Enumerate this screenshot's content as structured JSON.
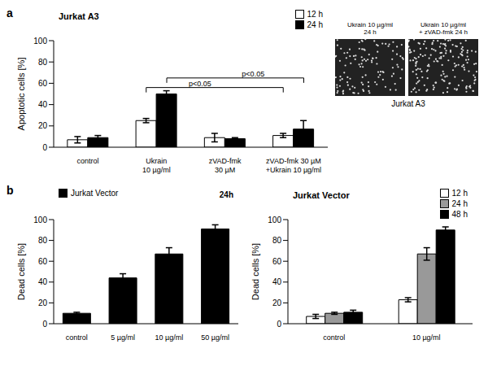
{
  "panel_labels": [
    "a",
    "b"
  ],
  "chart_data": [
    {
      "type": "bar",
      "title": "Jurkat A3",
      "ylabel": "Apoptotic cells [%]",
      "categories": [
        "control",
        "Ukrain\n10 µg/ml",
        "zVAD-fmk\n30 µM",
        "zVAD-fmk 30 µM\n+Ukrain 10 µg/ml"
      ],
      "series": [
        {
          "name": "12 h",
          "color": "#ffffff",
          "values": [
            7,
            25,
            9,
            11
          ],
          "errors": [
            3,
            2,
            4,
            2
          ]
        },
        {
          "name": "24 h",
          "color": "#000000",
          "values": [
            9,
            50,
            8,
            17
          ],
          "errors": [
            2,
            3,
            1,
            8
          ]
        }
      ],
      "ylim": [
        0,
        100
      ],
      "yticks": [
        0,
        20,
        40,
        60,
        80,
        100
      ],
      "grid": false,
      "legend": "upper right",
      "annotations": [
        "p<0.05",
        "p<0.05"
      ]
    },
    {
      "type": "bar",
      "ylabel": "Dead cells [%]",
      "categories": [
        "control",
        "5 µg/ml",
        "10 µg/ml",
        "50 µg/ml"
      ],
      "series": [
        {
          "name": "Jurkat Vector",
          "color": "#000000",
          "values": [
            10,
            44,
            67,
            91
          ],
          "errors": [
            1,
            4,
            6,
            4
          ]
        }
      ],
      "ylim": [
        0,
        100
      ],
      "yticks": [
        0,
        20,
        40,
        60,
        80,
        100
      ],
      "grid": false,
      "legend": "upper left",
      "annotations": [
        "24h"
      ]
    },
    {
      "type": "bar",
      "title": "Jurkat Vector",
      "ylabel": "Dead cells [%]",
      "categories": [
        "control",
        "10 µg/ml"
      ],
      "series": [
        {
          "name": "12 h",
          "color": "#ffffff",
          "values": [
            7,
            23
          ],
          "errors": [
            2,
            2
          ]
        },
        {
          "name": "24 h",
          "color": "#999999",
          "values": [
            10,
            67
          ],
          "errors": [
            1,
            6
          ]
        },
        {
          "name": "48 h",
          "color": "#000000",
          "values": [
            11,
            90
          ],
          "errors": [
            2,
            3
          ]
        }
      ],
      "ylim": [
        0,
        100
      ],
      "yticks": [
        0,
        20,
        40,
        60,
        80,
        100
      ],
      "grid": false,
      "legend": "upper right"
    }
  ],
  "micrograph": {
    "images": [
      "Ukrain 10 µg/ml\n24 h",
      "Ukrain 10 µg/ml\n+ zVAD-fmk 24 h"
    ],
    "caption": "Jurkat A3"
  }
}
